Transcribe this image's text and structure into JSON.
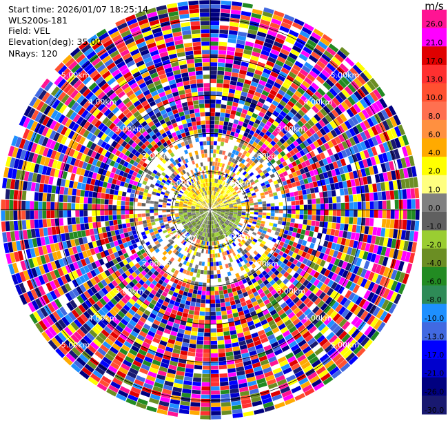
{
  "header": {
    "start_time": "Start time: 2026/01/07 18:25:14",
    "instrument": "WLS200s-181",
    "field": "Field: VEL",
    "elevation": "Elevation(deg): 35.00",
    "nrays": "NRays: 120"
  },
  "chart_data": {
    "type": "heatmap",
    "projection": "polar-ppi",
    "field": "VEL",
    "n_rays": 120,
    "range_rings_km": [
      1,
      2,
      3,
      4,
      5
    ],
    "range_ring_labels": [
      "1.00km",
      "2.00km",
      "3.00km",
      "4.00km",
      "5.00km"
    ],
    "max_range_km": 5.5,
    "colorbar": {
      "unit": "m/s",
      "ticks": [
        26.0,
        21.0,
        17.0,
        13.0,
        10.0,
        8.0,
        6.0,
        4.0,
        2.0,
        1.0,
        0.0,
        -1.0,
        -2.0,
        -4.0,
        -6.0,
        -8.0,
        -10.0,
        -13.0,
        -17.0,
        -21.0,
        -26.0,
        -30.0
      ],
      "tick_labels": [
        "26.0",
        "21.0",
        "17.0",
        "13.0",
        "10.0",
        "8.0",
        "6.0",
        "4.0",
        "2.0",
        "1.0",
        "0.0",
        "-1.0",
        "-2.0",
        "-4.0",
        "-6.0",
        "-8.0",
        "-10.0",
        "-13.0",
        "-17.0",
        "-21.0",
        "-26.0",
        "-30.0"
      ],
      "colors": [
        "#ff1493",
        "#ff00ff",
        "#e00000",
        "#ff3030",
        "#ff5030",
        "#ff7050",
        "#ff9040",
        "#ffaa00",
        "#ffff00",
        "#ffff80",
        "#808080",
        "#606060",
        "#9acd32",
        "#6b8e23",
        "#228b22",
        "#2e8b57",
        "#1e90ff",
        "#4169e1",
        "#0000ff",
        "#0000cd",
        "#000080",
        "#191970"
      ]
    }
  }
}
